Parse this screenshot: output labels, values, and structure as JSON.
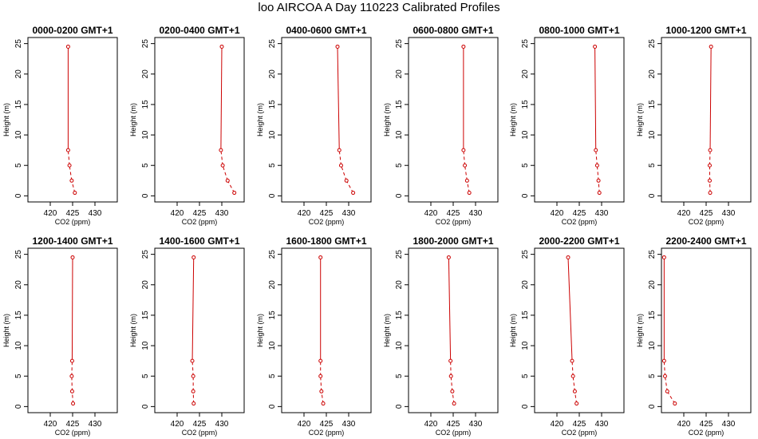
{
  "main_title": "loo AIRCOA A  Day 110223  Calibrated Profiles",
  "colors": {
    "series": "#cc0000",
    "axis": "#000000"
  },
  "chart_data": {
    "type": "line",
    "layout": "2x6 small multiples",
    "shared": {
      "xlabel": "CO2 (ppm)",
      "ylabel": "Height (m)",
      "xlim": [
        415,
        435
      ],
      "ylim": [
        -1,
        26
      ],
      "xticks": [
        420,
        425,
        430
      ],
      "yticks": [
        0,
        5,
        10,
        15,
        20,
        25
      ],
      "heights": [
        0.5,
        2.5,
        5,
        7.5,
        24.5
      ],
      "line_style": "dashed below 7.5 m, solid above",
      "marker": "open circle",
      "grid": false
    },
    "panels": [
      {
        "title": "0000-0200 GMT+1",
        "co2": [
          425.5,
          424.8,
          424.3,
          424.0,
          424.0
        ]
      },
      {
        "title": "0200-0400 GMT+1",
        "co2": [
          432.8,
          431.3,
          430.2,
          429.8,
          430.0
        ]
      },
      {
        "title": "0400-0600 GMT+1",
        "co2": [
          431.0,
          429.5,
          428.3,
          427.9,
          427.5
        ]
      },
      {
        "title": "0600-0800 GMT+1",
        "co2": [
          428.6,
          428.1,
          427.6,
          427.3,
          427.3
        ]
      },
      {
        "title": "0800-1000 GMT+1",
        "co2": [
          429.5,
          429.3,
          429.0,
          428.7,
          428.5
        ]
      },
      {
        "title": "1000-1200 GMT+1",
        "co2": [
          425.9,
          425.8,
          425.8,
          425.9,
          426.1
        ]
      },
      {
        "title": "1200-1400 GMT+1",
        "co2": [
          425.1,
          424.9,
          424.8,
          424.9,
          425.0
        ]
      },
      {
        "title": "1400-1600 GMT+1",
        "co2": [
          423.7,
          423.6,
          423.6,
          423.4,
          423.7
        ]
      },
      {
        "title": "1600-1800 GMT+1",
        "co2": [
          424.3,
          423.9,
          423.7,
          423.7,
          423.7
        ]
      },
      {
        "title": "1800-2000 GMT+1",
        "co2": [
          425.2,
          424.8,
          424.5,
          424.4,
          424.0
        ]
      },
      {
        "title": "2000-2200 GMT+1",
        "co2": [
          424.4,
          424.0,
          423.6,
          423.4,
          422.5
        ]
      },
      {
        "title": "2200-2400 GMT+1",
        "co2": [
          418.0,
          416.3,
          415.8,
          415.6,
          415.6
        ]
      }
    ]
  }
}
